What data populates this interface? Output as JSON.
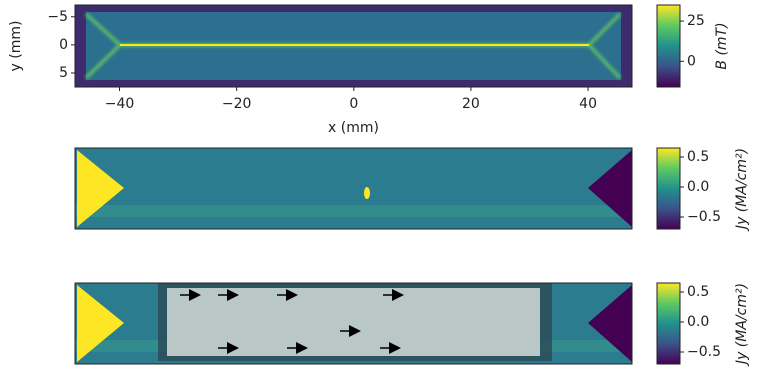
{
  "chart_data": [
    {
      "type": "heatmap",
      "xlabel": "x (mm)",
      "ylabel": "y (mm)",
      "xlim": [
        -47.6,
        47.5
      ],
      "ylim": [
        -7.1,
        7.5
      ],
      "xticks": [
        {
          "value": -40,
          "label": "−40"
        },
        {
          "value": -20,
          "label": "−20"
        },
        0,
        20,
        40
      ],
      "yticks": [
        {
          "value": -5,
          "label": "−5"
        },
        0,
        5
      ],
      "colorbar_label": "B (mT)",
      "clim": [
        -16,
        35
      ],
      "cticks": [
        0,
        25
      ]
    },
    {
      "type": "heatmap",
      "colorbar_label": "Jy (MA/cm²)",
      "clim": [
        -0.7,
        0.65
      ],
      "cticks": [
        0.5,
        {
          "value": 0,
          "label": "0.0"
        },
        {
          "value": -0.5,
          "label": "−0.5"
        }
      ]
    },
    {
      "type": "heatmap",
      "colorbar_label": "Jy (MA/cm²)",
      "clim": [
        -0.7,
        0.65
      ],
      "cticks": [
        0.5,
        {
          "value": 0,
          "label": "0.0"
        },
        {
          "value": -0.5,
          "label": "−0.5"
        }
      ]
    }
  ]
}
